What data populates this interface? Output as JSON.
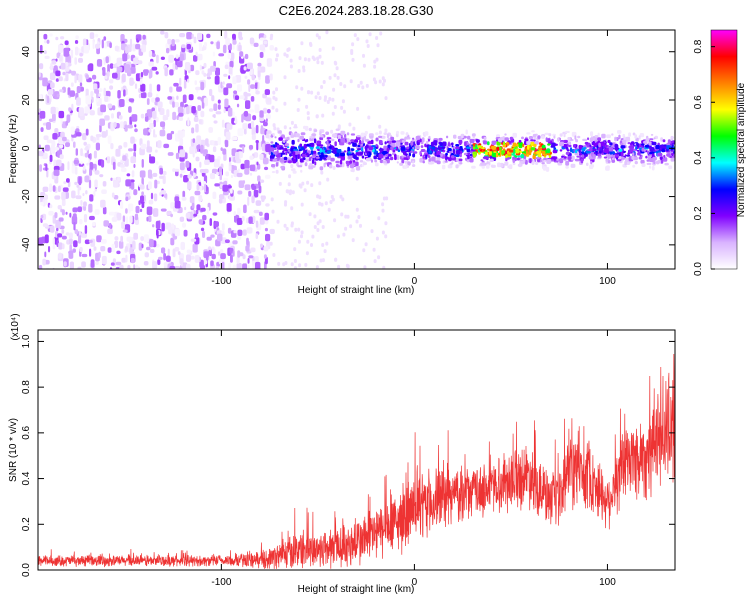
{
  "page": {
    "title": "C2E6.2024.283.18.28.G30"
  },
  "chart_data": [
    {
      "type": "heatmap",
      "title": "C2E6.2024.283.18.28.G30",
      "xlabel": "Height of straight line (km)",
      "ylabel": "Frequency (Hz)",
      "xlim": [
        -195,
        135
      ],
      "ylim": [
        -50,
        49
      ],
      "x_ticks": [
        -100,
        0,
        100
      ],
      "y_ticks": [
        -40,
        -20,
        0,
        20,
        40
      ],
      "colorbar": {
        "label": "Normalized spectral amplitude",
        "range": [
          0.0,
          0.86
        ],
        "ticks": [
          0.0,
          0.2,
          0.4,
          0.6,
          0.8
        ],
        "colors": [
          "#ffffff",
          "#d9b3ff",
          "#8000ff",
          "#0000ff",
          "#00ffff",
          "#00ff00",
          "#ffff00",
          "#ff8000",
          "#ff0000",
          "#ff00ff"
        ]
      },
      "features": [
        {
          "x_range": [
            -195,
            -75
          ],
          "y_range": [
            -50,
            49
          ],
          "amplitude": 0.05
        },
        {
          "x_range": [
            -75,
            135
          ],
          "y_center": 0,
          "y_halfwidth": 8,
          "amplitude": 0.3
        },
        {
          "x_range": [
            30,
            70
          ],
          "y_center": 0,
          "y_halfwidth": 2,
          "amplitude": 0.8
        }
      ],
      "grid": false
    },
    {
      "type": "line",
      "xlabel": "Height of straight line (km)",
      "ylabel": "SNR (10 * v/v)",
      "y_multiplier": "(x10⁴)",
      "xlim": [
        -195,
        135
      ],
      "ylim": [
        0.0,
        1.05
      ],
      "x_ticks": [
        -100,
        0,
        100
      ],
      "y_ticks": [
        0.0,
        0.2,
        0.4,
        0.6,
        0.8,
        1.0
      ],
      "color": "#ee3333",
      "grid": false,
      "envelope": {
        "x": [
          -195,
          -150,
          -100,
          -80,
          -70,
          -60,
          -50,
          -40,
          -30,
          -20,
          -10,
          0,
          10,
          20,
          30,
          40,
          50,
          60,
          70,
          75,
          80,
          90,
          100,
          110,
          120,
          130,
          135
        ],
        "mean": [
          0.04,
          0.04,
          0.04,
          0.045,
          0.06,
          0.09,
          0.09,
          0.1,
          0.12,
          0.16,
          0.2,
          0.26,
          0.3,
          0.33,
          0.34,
          0.36,
          0.4,
          0.42,
          0.3,
          0.3,
          0.44,
          0.42,
          0.3,
          0.48,
          0.5,
          0.62,
          0.65
        ],
        "spread": [
          0.02,
          0.02,
          0.02,
          0.03,
          0.05,
          0.07,
          0.07,
          0.08,
          0.09,
          0.1,
          0.11,
          0.12,
          0.12,
          0.1,
          0.09,
          0.1,
          0.11,
          0.12,
          0.1,
          0.1,
          0.14,
          0.13,
          0.1,
          0.15,
          0.16,
          0.2,
          0.22
        ]
      }
    }
  ]
}
